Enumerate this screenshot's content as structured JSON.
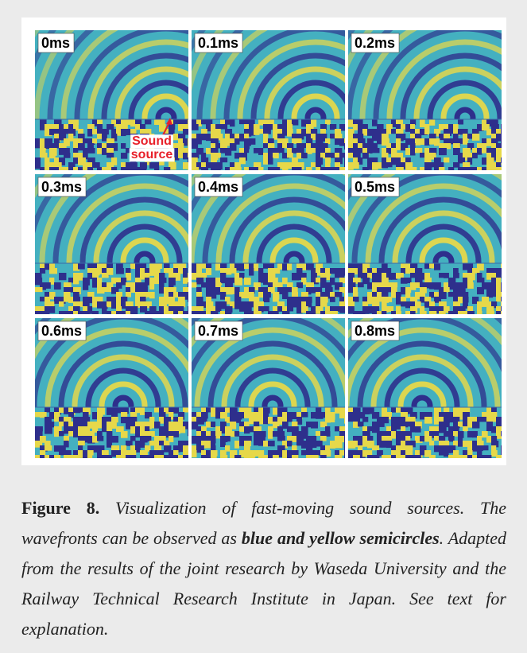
{
  "figure": {
    "panels": [
      {
        "label": "0ms"
      },
      {
        "label": "0.1ms"
      },
      {
        "label": "0.2ms"
      },
      {
        "label": "0.3ms"
      },
      {
        "label": "0.4ms"
      },
      {
        "label": "0.5ms"
      },
      {
        "label": "0.6ms"
      },
      {
        "label": "0.7ms"
      },
      {
        "label": "0.8ms"
      }
    ],
    "annotation": [
      "Sound",
      "source"
    ],
    "caption": {
      "label": "Figure 8.",
      "text_before": "Visualization of fast-moving sound sources. The wavefronts can be observed as",
      "emphasis": "blue and yellow semicircles",
      "text_after": ". Adapted from the results of the joint research by Waseda University and the Railway Technical Research Institute in Japan. See text for explanation."
    }
  }
}
